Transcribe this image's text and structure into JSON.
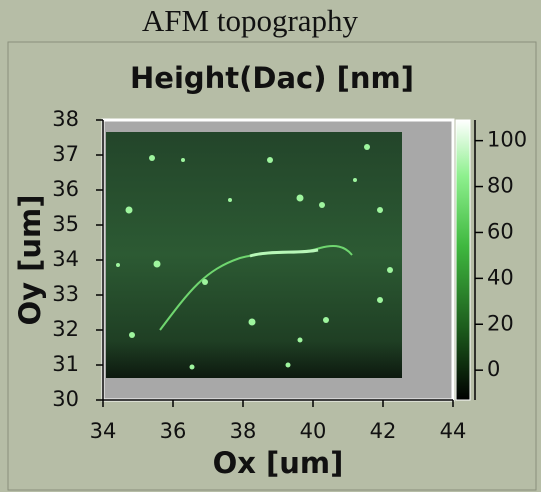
{
  "title": "AFM topography",
  "chart_data": {
    "type": "image",
    "title": "Height(Dac) [nm]",
    "x_label": "Ox [um]",
    "y_label": "Oy [um]",
    "xlim": [
      34,
      44
    ],
    "xticks": [
      34,
      36,
      38,
      40,
      42,
      44
    ],
    "ylim": [
      30,
      38
    ],
    "yticks": [
      30,
      31,
      32,
      33,
      34,
      35,
      36,
      37,
      38
    ],
    "colorbar": {
      "lim": [
        -13,
        109
      ],
      "ticks": [
        0,
        20,
        40,
        60,
        80,
        100
      ]
    }
  }
}
